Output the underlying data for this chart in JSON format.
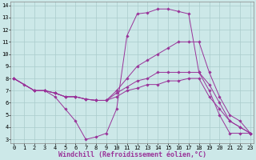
{
  "background_color": "#cce8e8",
  "grid_color": "#aacccc",
  "line_color": "#993399",
  "xlim": [
    -0.3,
    23.3
  ],
  "ylim": [
    2.7,
    14.3
  ],
  "xticks": [
    0,
    1,
    2,
    3,
    4,
    5,
    6,
    7,
    8,
    9,
    10,
    11,
    12,
    13,
    14,
    15,
    16,
    17,
    18,
    19,
    20,
    21,
    22,
    23
  ],
  "yticks": [
    3,
    4,
    5,
    6,
    7,
    8,
    9,
    10,
    11,
    12,
    13,
    14
  ],
  "xlabel": "Windchill (Refroidissement éolien,°C)",
  "lines": [
    {
      "x": [
        0,
        1,
        2,
        3,
        4,
        5,
        6,
        7,
        8,
        9,
        10,
        11,
        12,
        13,
        14,
        15,
        16,
        17,
        18,
        19,
        20,
        21,
        22,
        23
      ],
      "y": [
        8.0,
        7.5,
        7.0,
        7.0,
        6.5,
        5.5,
        4.5,
        3.0,
        3.2,
        3.5,
        5.5,
        11.5,
        13.3,
        13.4,
        13.7,
        13.7,
        13.5,
        13.3,
        8.5,
        7.0,
        5.0,
        3.5,
        3.5,
        3.5
      ]
    },
    {
      "x": [
        0,
        2,
        3,
        4,
        5,
        6,
        7,
        8,
        9,
        10,
        11,
        12,
        13,
        14,
        15,
        16,
        17,
        18,
        19,
        20,
        21,
        22,
        23
      ],
      "y": [
        8.0,
        7.0,
        7.0,
        6.8,
        6.5,
        6.5,
        6.3,
        6.2,
        6.2,
        7.0,
        8.0,
        9.0,
        9.5,
        10.0,
        10.5,
        11.0,
        11.0,
        11.0,
        8.5,
        6.5,
        5.0,
        4.5,
        3.5
      ]
    },
    {
      "x": [
        0,
        2,
        3,
        4,
        5,
        6,
        7,
        8,
        9,
        10,
        11,
        12,
        13,
        14,
        15,
        16,
        17,
        18,
        19,
        20,
        21,
        22,
        23
      ],
      "y": [
        8.0,
        7.0,
        7.0,
        6.8,
        6.5,
        6.5,
        6.3,
        6.2,
        6.2,
        6.8,
        7.3,
        7.8,
        8.0,
        8.5,
        8.5,
        8.5,
        8.5,
        8.5,
        7.5,
        6.0,
        4.5,
        4.0,
        3.5
      ]
    },
    {
      "x": [
        0,
        2,
        3,
        4,
        5,
        6,
        7,
        8,
        9,
        10,
        11,
        12,
        13,
        14,
        15,
        16,
        17,
        18,
        19,
        20,
        21,
        22,
        23
      ],
      "y": [
        8.0,
        7.0,
        7.0,
        6.8,
        6.5,
        6.5,
        6.3,
        6.2,
        6.2,
        6.5,
        7.0,
        7.2,
        7.5,
        7.5,
        7.8,
        7.8,
        8.0,
        8.0,
        6.5,
        5.5,
        4.5,
        4.0,
        3.5
      ]
    }
  ],
  "tick_fontsize": 5.0,
  "xlabel_fontsize": 6.0
}
